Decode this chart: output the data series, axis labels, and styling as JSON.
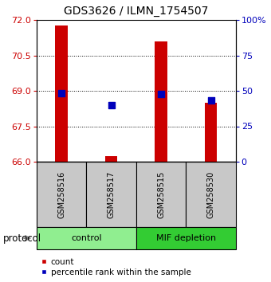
{
  "title": "GDS3626 / ILMN_1754507",
  "samples": [
    "GSM258516",
    "GSM258517",
    "GSM258515",
    "GSM258530"
  ],
  "group_control": {
    "name": "control",
    "color": "#90EE90",
    "indices": [
      0,
      1
    ]
  },
  "group_mif": {
    "name": "MIF depletion",
    "color": "#33CC33",
    "indices": [
      2,
      3
    ]
  },
  "count_values": [
    71.75,
    66.22,
    71.1,
    68.5
  ],
  "percentile_values": [
    48.5,
    40.0,
    48.0,
    43.0
  ],
  "ylim_left": [
    66,
    72
  ],
  "ylim_right": [
    0,
    100
  ],
  "yticks_left": [
    66,
    67.5,
    69,
    70.5,
    72
  ],
  "yticks_right": [
    0,
    25,
    50,
    75,
    100
  ],
  "ytick_labels_right": [
    "0",
    "25",
    "50",
    "75",
    "100%"
  ],
  "bar_color": "#CC0000",
  "dot_color": "#0000BB",
  "bar_width": 0.25,
  "dot_size": 35,
  "sample_box_color": "#C8C8C8",
  "legend_count_label": "count",
  "legend_pct_label": "percentile rank within the sample"
}
